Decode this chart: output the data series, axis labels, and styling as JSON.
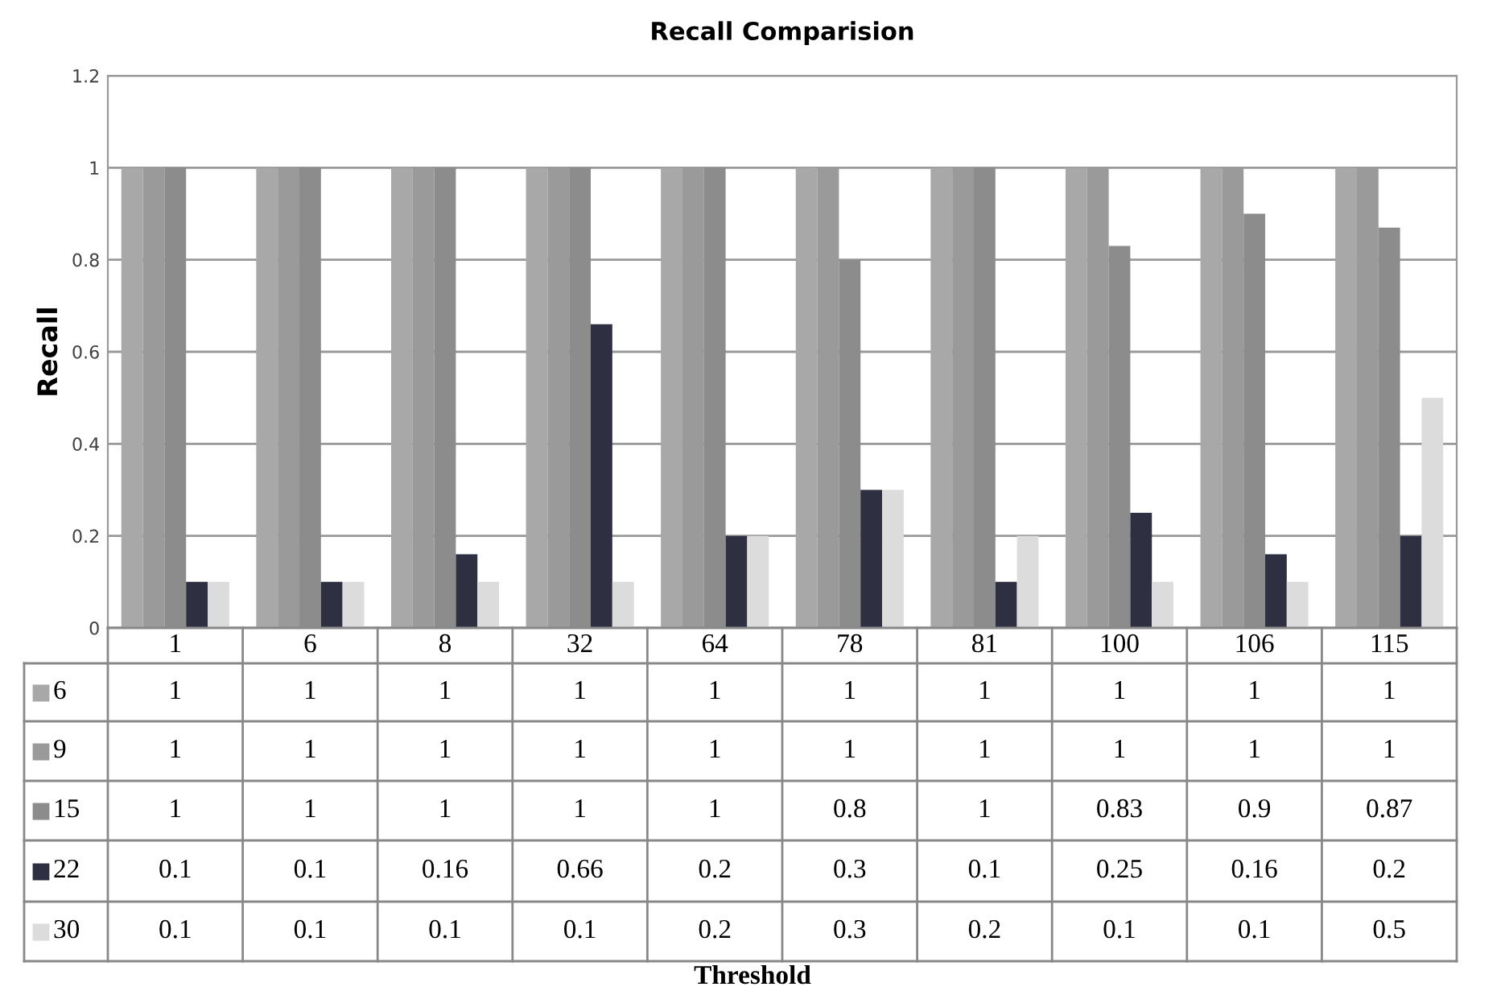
{
  "chart_data": {
    "type": "bar",
    "title": "Recall Comparision",
    "annotations": [
      "Threshold"
    ],
    "ylabel": "Recall",
    "categories": [
      "1",
      "6",
      "8",
      "32",
      "64",
      "78",
      "81",
      "100",
      "106",
      "115"
    ],
    "series": [
      {
        "name": "6",
        "color": "#a8a8a8",
        "values": [
          1,
          1,
          1,
          1,
          1,
          1,
          1,
          1,
          1,
          1
        ]
      },
      {
        "name": "9",
        "color": "#9a9a9a",
        "values": [
          1,
          1,
          1,
          1,
          1,
          1,
          1,
          1,
          1,
          1
        ]
      },
      {
        "name": "15",
        "color": "#8c8c8c",
        "values": [
          1,
          1,
          1,
          1,
          1,
          0.8,
          1,
          0.83,
          0.9,
          0.87
        ]
      },
      {
        "name": "22",
        "color": "#2f2f42",
        "values": [
          0.1,
          0.1,
          0.16,
          0.66,
          0.2,
          0.3,
          0.1,
          0.25,
          0.16,
          0.2
        ]
      },
      {
        "name": "30",
        "color": "#dcdcdc",
        "values": [
          0.1,
          0.1,
          0.1,
          0.1,
          0.2,
          0.3,
          0.2,
          0.1,
          0.1,
          0.5
        ]
      }
    ],
    "ylim": [
      0,
      1.2
    ],
    "yticks": [
      0,
      0.2,
      0.4,
      0.6,
      0.8,
      1,
      1.2
    ],
    "grid": "y",
    "data_labels": true,
    "legend": "bottom left"
  }
}
